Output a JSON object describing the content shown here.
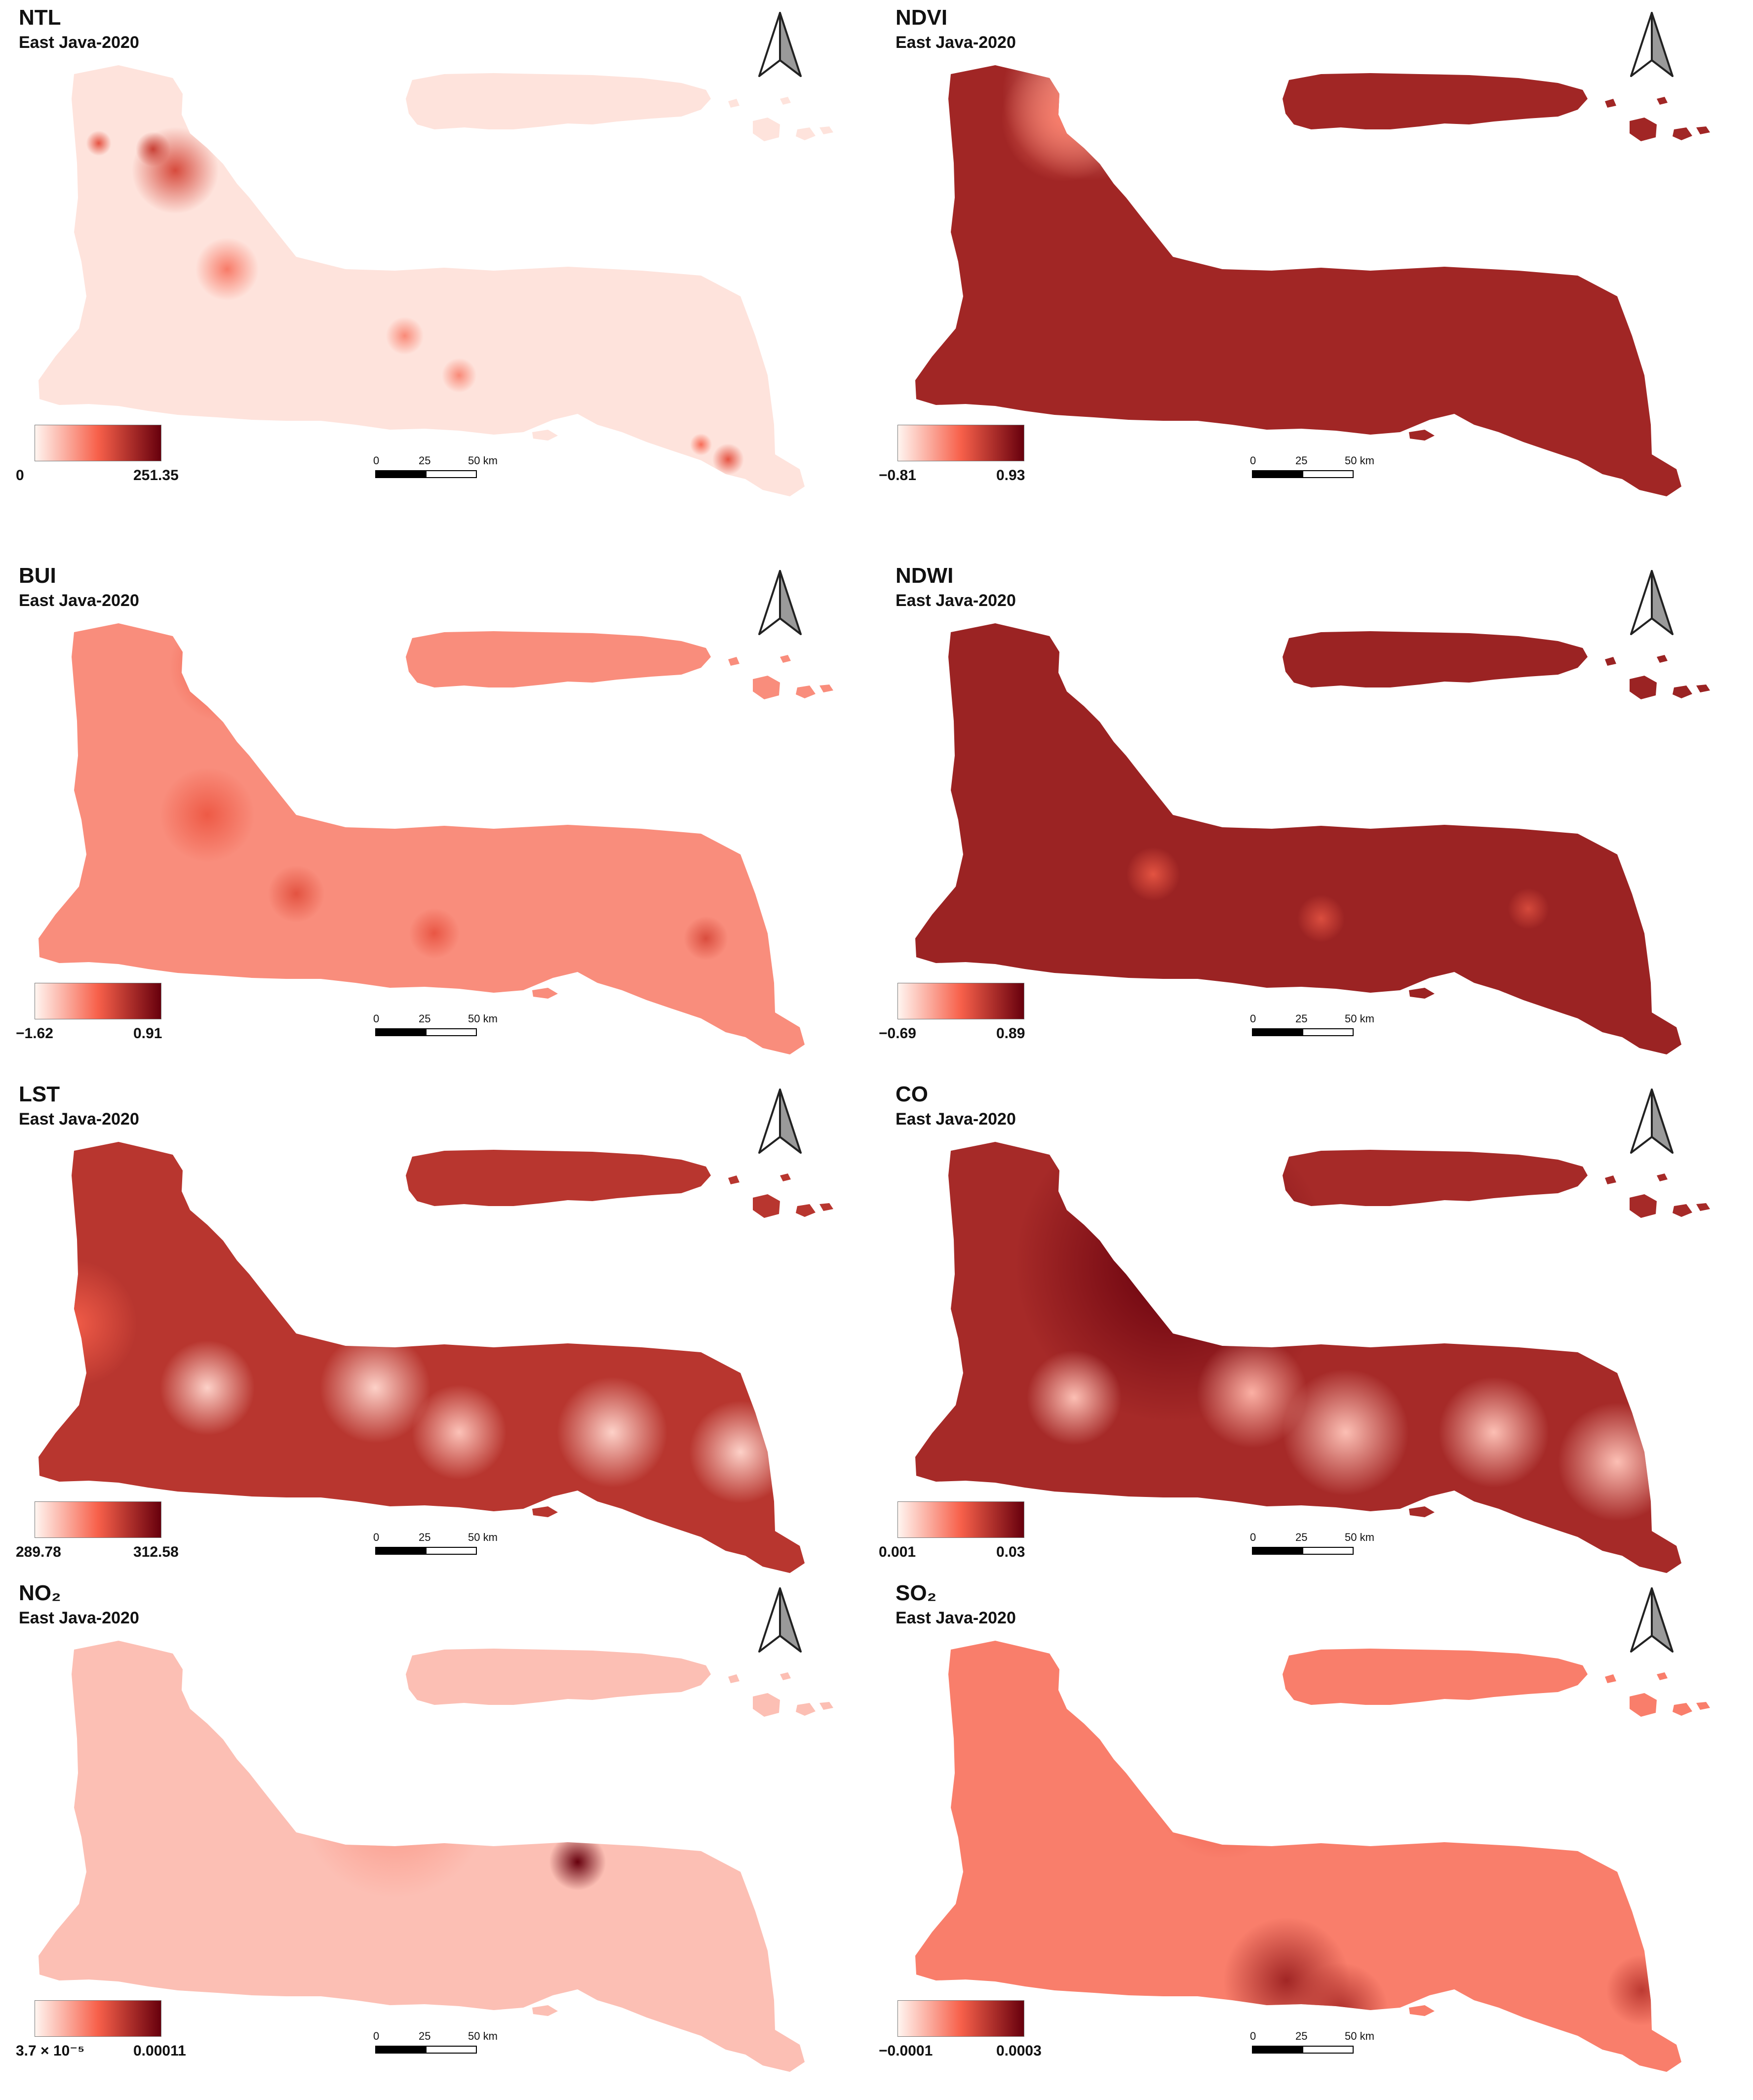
{
  "subtitle": "East Java-2020",
  "scale": {
    "labels": [
      "0",
      "25",
      "50 km"
    ]
  },
  "colors": {
    "ramp_low": "#fff5f0",
    "ramp_mid": "#f7604a",
    "ramp_high": "#67000d"
  },
  "panels": [
    {
      "id": "ntl",
      "title": "NTL",
      "legend_min": "0",
      "legend_max": "251.35",
      "fill_level": 0.06
    },
    {
      "id": "ndvi",
      "title": "NDVI",
      "legend_min": "−0.81",
      "legend_max": "0.93",
      "fill_level": 0.8
    },
    {
      "id": "bui",
      "title": "BUI",
      "legend_min": "−1.62",
      "legend_max": "0.91",
      "fill_level": 0.35
    },
    {
      "id": "ndwi",
      "title": "NDWI",
      "legend_min": "−0.69",
      "legend_max": "0.89",
      "fill_level": 0.82
    },
    {
      "id": "lst",
      "title": "LST",
      "legend_min": "289.78",
      "legend_max": "312.58",
      "fill_level": 0.72
    },
    {
      "id": "co",
      "title": "CO",
      "legend_min": "0.001",
      "legend_max": "0.03",
      "fill_level": 0.78
    },
    {
      "id": "no2",
      "title": "NO₂",
      "legend_min": "3.7 × 10⁻⁵",
      "legend_max": "0.00011",
      "fill_level": 0.18
    },
    {
      "id": "so2",
      "title": "SO₂",
      "legend_min": "−0.0001",
      "legend_max": "0.0003",
      "fill_level": 0.4
    }
  ]
}
